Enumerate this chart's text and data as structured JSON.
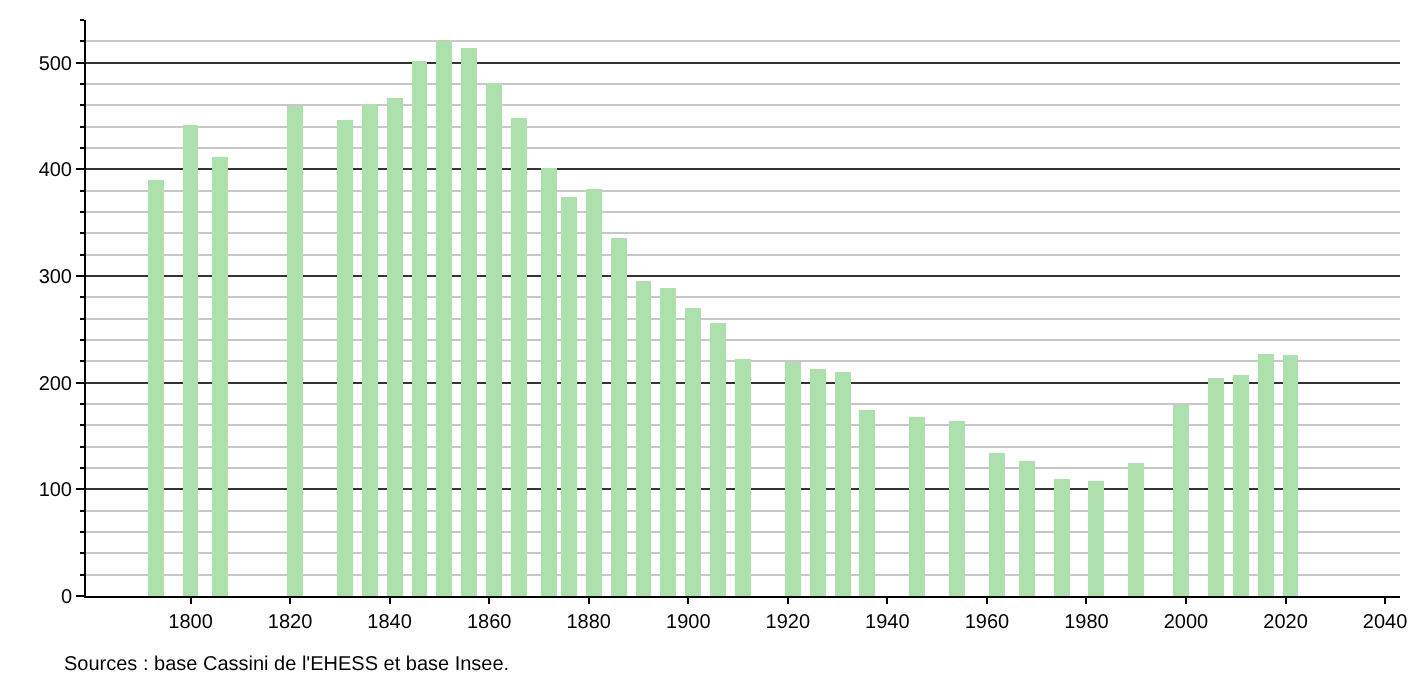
{
  "chart_data": {
    "type": "bar",
    "x": [
      1793,
      1800,
      1806,
      1821,
      1831,
      1836,
      1841,
      1846,
      1851,
      1856,
      1861,
      1866,
      1872,
      1876,
      1881,
      1886,
      1891,
      1896,
      1901,
      1906,
      1911,
      1921,
      1926,
      1931,
      1936,
      1946,
      1954,
      1962,
      1968,
      1975,
      1982,
      1990,
      1999,
      2006,
      2011,
      2016,
      2021
    ],
    "values": [
      390,
      442,
      412,
      459,
      446,
      461,
      467,
      502,
      520,
      514,
      481,
      448,
      401,
      374,
      382,
      336,
      295,
      289,
      270,
      256,
      222,
      219,
      213,
      210,
      174,
      168,
      164,
      134,
      127,
      110,
      108,
      125,
      179,
      204,
      207,
      227,
      226
    ],
    "color": "#aee0ae",
    "xlim": [
      1779,
      2043
    ],
    "xticks": [
      1800,
      1820,
      1840,
      1860,
      1880,
      1900,
      1920,
      1940,
      1960,
      1980,
      2000,
      2020,
      2040
    ],
    "ylim": [
      0,
      540
    ],
    "yticks": [
      0,
      {
        "value": 20,
        "label": null
      },
      {
        "value": 40,
        "label": null
      },
      {
        "value": 60,
        "label": null
      },
      {
        "value": 80,
        "label": null
      },
      100,
      {
        "value": 120,
        "label": null
      },
      {
        "value": 140,
        "label": null
      },
      {
        "value": 160,
        "label": null
      },
      {
        "value": 180,
        "label": null
      },
      200,
      {
        "value": 220,
        "label": null
      },
      {
        "value": 240,
        "label": null
      },
      {
        "value": 260,
        "label": null
      },
      {
        "value": 280,
        "label": null
      },
      300,
      {
        "value": 320,
        "label": null
      },
      {
        "value": 340,
        "label": null
      },
      {
        "value": 360,
        "label": null
      },
      {
        "value": 380,
        "label": null
      },
      400,
      {
        "value": 420,
        "label": null
      },
      {
        "value": 440,
        "label": null
      },
      {
        "value": 460,
        "label": null
      },
      {
        "value": 480,
        "label": null
      },
      500,
      {
        "value": 520,
        "label": null
      },
      {
        "value": 540,
        "label": null
      }
    ],
    "grid": "y",
    "annotations": [
      "Sources : base Cassini de l'EHESS et base Insee."
    ]
  }
}
